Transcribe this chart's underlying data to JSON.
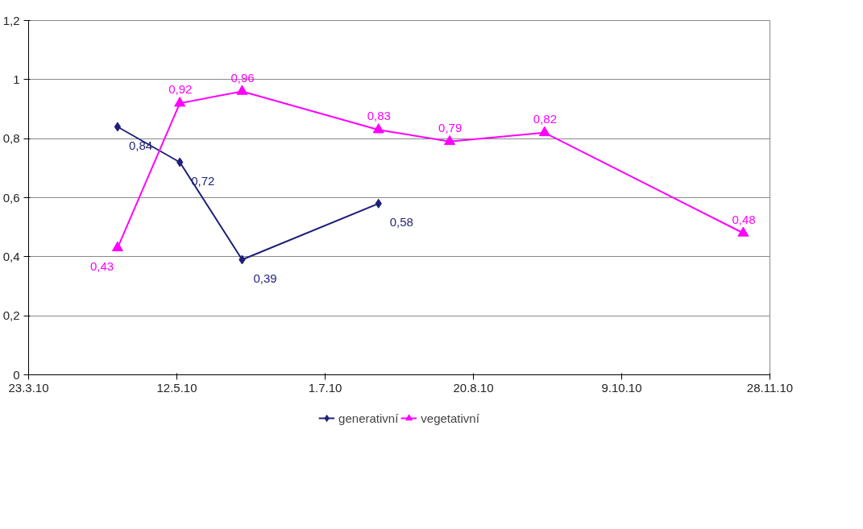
{
  "chart_data": {
    "type": "line",
    "xlim": [
      "2010-03-23",
      "2010-11-28"
    ],
    "xticks": [
      {
        "value": "2010-03-23",
        "label": "23.3.10"
      },
      {
        "value": "2010-05-12",
        "label": "12.5.10"
      },
      {
        "value": "2010-07-01",
        "label": "1.7.10"
      },
      {
        "value": "2010-08-20",
        "label": "20.8.10"
      },
      {
        "value": "2010-10-09",
        "label": "9.10.10"
      },
      {
        "value": "2010-11-28",
        "label": "28.11.10"
      }
    ],
    "ylim": [
      0,
      1.2
    ],
    "yticks": [
      {
        "value": 0,
        "label": "0"
      },
      {
        "value": 0.2,
        "label": "0,2"
      },
      {
        "value": 0.4,
        "label": "0,4"
      },
      {
        "value": 0.6,
        "label": "0,6"
      },
      {
        "value": 0.8,
        "label": "0,8"
      },
      {
        "value": 1,
        "label": "1"
      },
      {
        "value": 1.2,
        "label": "1,2"
      }
    ],
    "grid": "y",
    "legend": "bottom",
    "series": [
      {
        "name": "generativní",
        "color": "#1f1f7a",
        "marker": "diamond",
        "x": [
          "2010-04-22",
          "2010-05-13",
          "2010-06-03",
          "2010-07-19"
        ],
        "values": [
          0.84,
          0.72,
          0.39,
          0.58
        ],
        "value_labels": [
          "0,84",
          "0,72",
          "0,39",
          "0,58"
        ]
      },
      {
        "name": "vegetativní",
        "color": "#ff00ff",
        "marker": "triangle",
        "x": [
          "2010-04-22",
          "2010-05-13",
          "2010-06-03",
          "2010-07-19",
          "2010-08-12",
          "2010-09-13",
          "2010-11-19"
        ],
        "values": [
          0.43,
          0.92,
          0.96,
          0.83,
          0.79,
          0.82,
          0.48
        ],
        "value_labels": [
          "0,43",
          "0,92",
          "0,96",
          "0,83",
          "0,79",
          "0,82",
          "0,48"
        ]
      }
    ]
  }
}
